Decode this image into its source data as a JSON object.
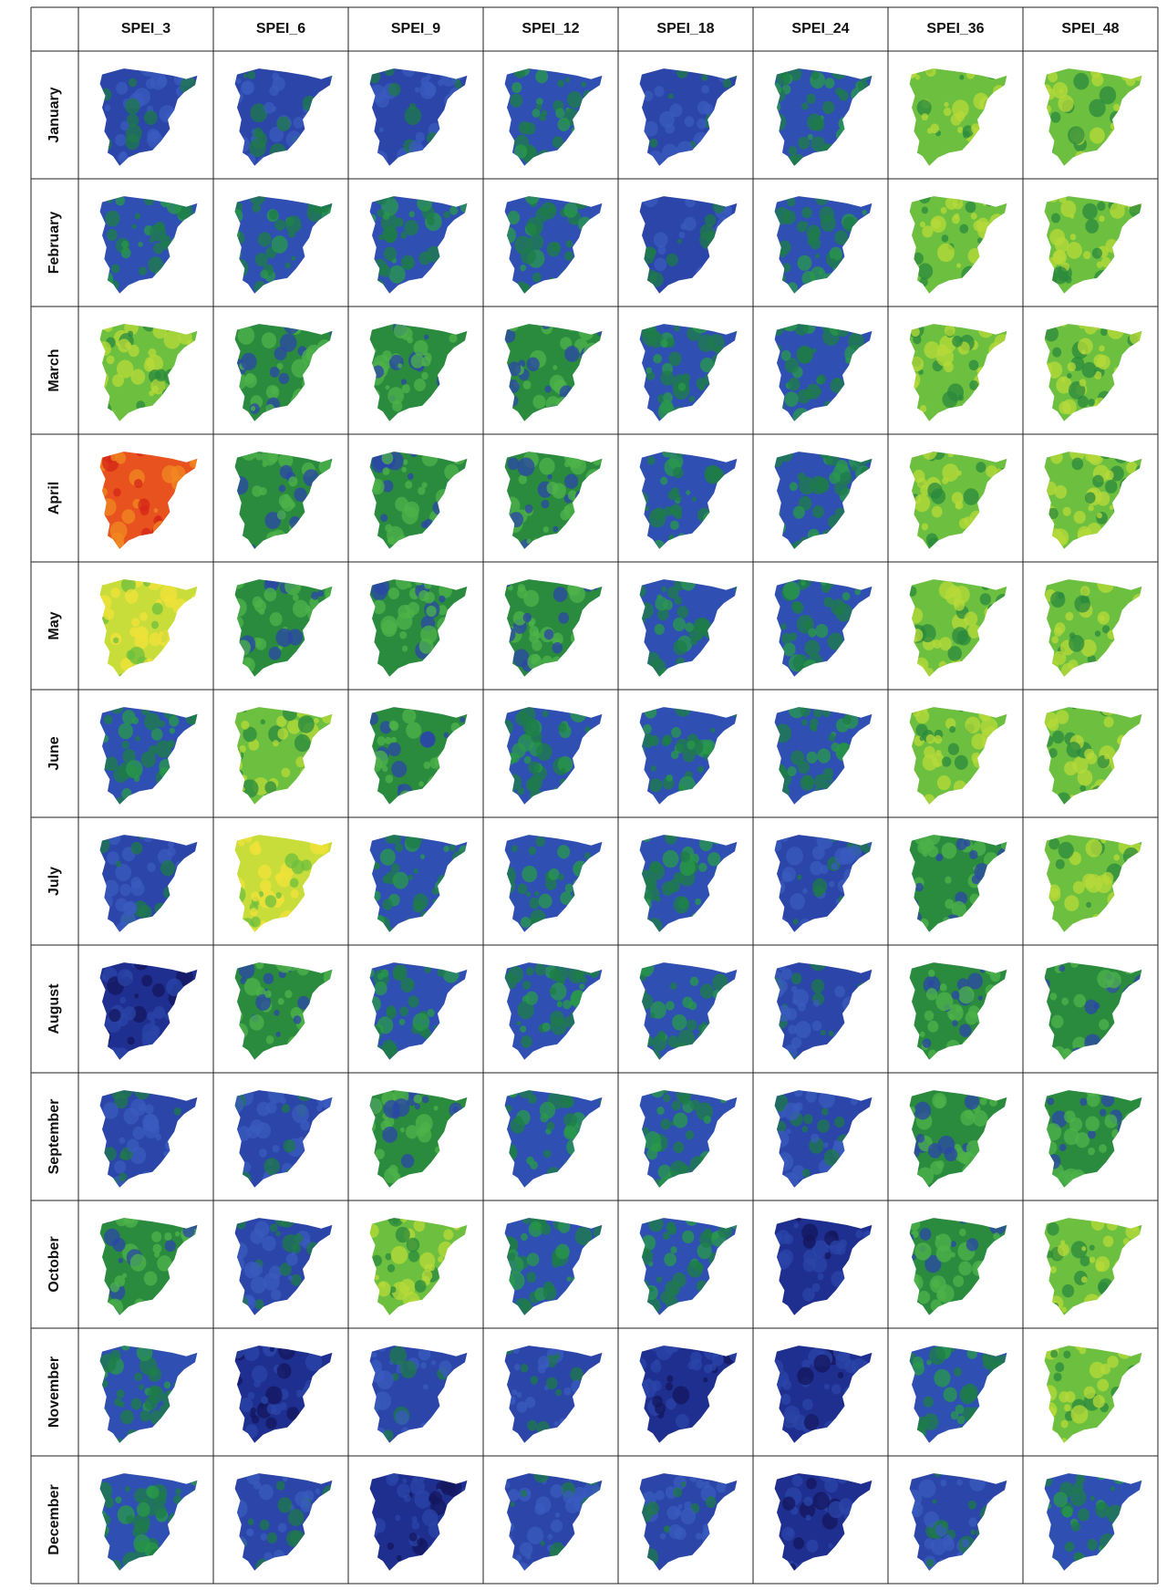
{
  "table": {
    "columns": [
      "SPEI_3",
      "SPEI_6",
      "SPEI_9",
      "SPEI_12",
      "SPEI_18",
      "SPEI_24",
      "SPEI_36",
      "SPEI_48"
    ],
    "rows": [
      "January",
      "February",
      "March",
      "April",
      "May",
      "June",
      "July",
      "August",
      "September",
      "October",
      "November",
      "December"
    ]
  }
}
